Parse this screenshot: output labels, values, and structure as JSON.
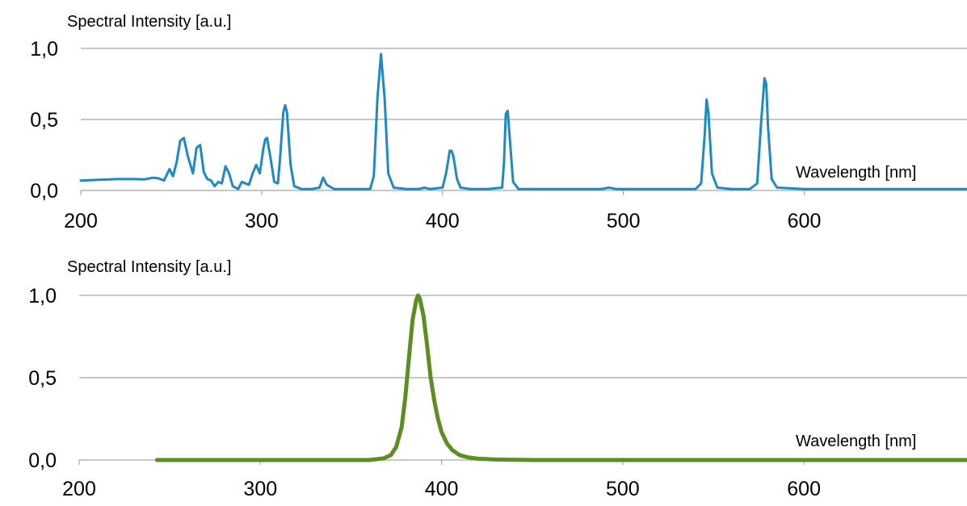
{
  "chart_data": [
    {
      "type": "line",
      "ylabel": "Spectral Intensity [a.u.]",
      "xlabel": "Wavelength [nm]",
      "xlim": [
        200,
        690
      ],
      "ylim": [
        0,
        1.0
      ],
      "xticks": [
        "200",
        "300",
        "400",
        "500",
        "600"
      ],
      "yticks": [
        "0,0",
        "0,5",
        "1,0"
      ],
      "grid": "horizontal",
      "series": [
        {
          "color": "#1f8ac0",
          "x": [
            200,
            210,
            220,
            230,
            235,
            238,
            240,
            243,
            246,
            249,
            251,
            253,
            255,
            257,
            259,
            262,
            264,
            266,
            268,
            270,
            272,
            274,
            276,
            278,
            280,
            282,
            284,
            287,
            289,
            291,
            293,
            295,
            297,
            299,
            301,
            302,
            303,
            305,
            307,
            309,
            310,
            312,
            313,
            314,
            316,
            318,
            322,
            328,
            332,
            334,
            336,
            340,
            350,
            360,
            362,
            364,
            366,
            368,
            370,
            373,
            380,
            387,
            390,
            393,
            400,
            402,
            404,
            405,
            406,
            408,
            410,
            415,
            425,
            433,
            434,
            435,
            436,
            437,
            439,
            442,
            450,
            480,
            488,
            492,
            496,
            520,
            540,
            543,
            545,
            546,
            547,
            549,
            552,
            560,
            570,
            574,
            576,
            578,
            579,
            580,
            582,
            585,
            600,
            650,
            690
          ],
          "y": [
            0.07,
            0.075,
            0.08,
            0.08,
            0.078,
            0.085,
            0.09,
            0.085,
            0.07,
            0.15,
            0.1,
            0.2,
            0.35,
            0.37,
            0.25,
            0.12,
            0.3,
            0.32,
            0.13,
            0.08,
            0.07,
            0.03,
            0.06,
            0.05,
            0.17,
            0.12,
            0.03,
            0.01,
            0.06,
            0.05,
            0.04,
            0.12,
            0.18,
            0.12,
            0.3,
            0.36,
            0.37,
            0.22,
            0.06,
            0.05,
            0.2,
            0.55,
            0.6,
            0.55,
            0.18,
            0.03,
            0.01,
            0.01,
            0.02,
            0.09,
            0.04,
            0.01,
            0.01,
            0.01,
            0.1,
            0.65,
            0.96,
            0.65,
            0.12,
            0.02,
            0.01,
            0.01,
            0.02,
            0.01,
            0.02,
            0.12,
            0.28,
            0.28,
            0.24,
            0.08,
            0.02,
            0.01,
            0.01,
            0.02,
            0.2,
            0.54,
            0.56,
            0.4,
            0.06,
            0.01,
            0.01,
            0.01,
            0.01,
            0.02,
            0.01,
            0.01,
            0.01,
            0.05,
            0.4,
            0.64,
            0.55,
            0.12,
            0.02,
            0.01,
            0.01,
            0.05,
            0.45,
            0.79,
            0.75,
            0.45,
            0.08,
            0.02,
            0.01,
            0.01,
            0.01
          ]
        }
      ]
    },
    {
      "type": "line",
      "ylabel": "Spectral Intensity [a.u.]",
      "xlabel": "Wavelength [nm]",
      "xlim": [
        200,
        690
      ],
      "ylim": [
        0,
        1.0
      ],
      "xticks": [
        "200",
        "300",
        "400",
        "500",
        "600"
      ],
      "yticks": [
        "0,0",
        "0,5",
        "1,0"
      ],
      "grid": "horizontal",
      "series": [
        {
          "color": "#5b8f22",
          "x": [
            243,
            300,
            360,
            368,
            372,
            375,
            378,
            380,
            382,
            384,
            386,
            387,
            388,
            390,
            392,
            394,
            396,
            398,
            400,
            403,
            406,
            410,
            415,
            420,
            430,
            450,
            690
          ],
          "y": [
            0.0,
            0.0,
            0.0,
            0.01,
            0.03,
            0.08,
            0.2,
            0.38,
            0.62,
            0.85,
            0.97,
            1.0,
            0.98,
            0.88,
            0.7,
            0.5,
            0.36,
            0.25,
            0.17,
            0.1,
            0.06,
            0.03,
            0.015,
            0.008,
            0.003,
            0.0,
            0.0
          ]
        }
      ]
    }
  ]
}
